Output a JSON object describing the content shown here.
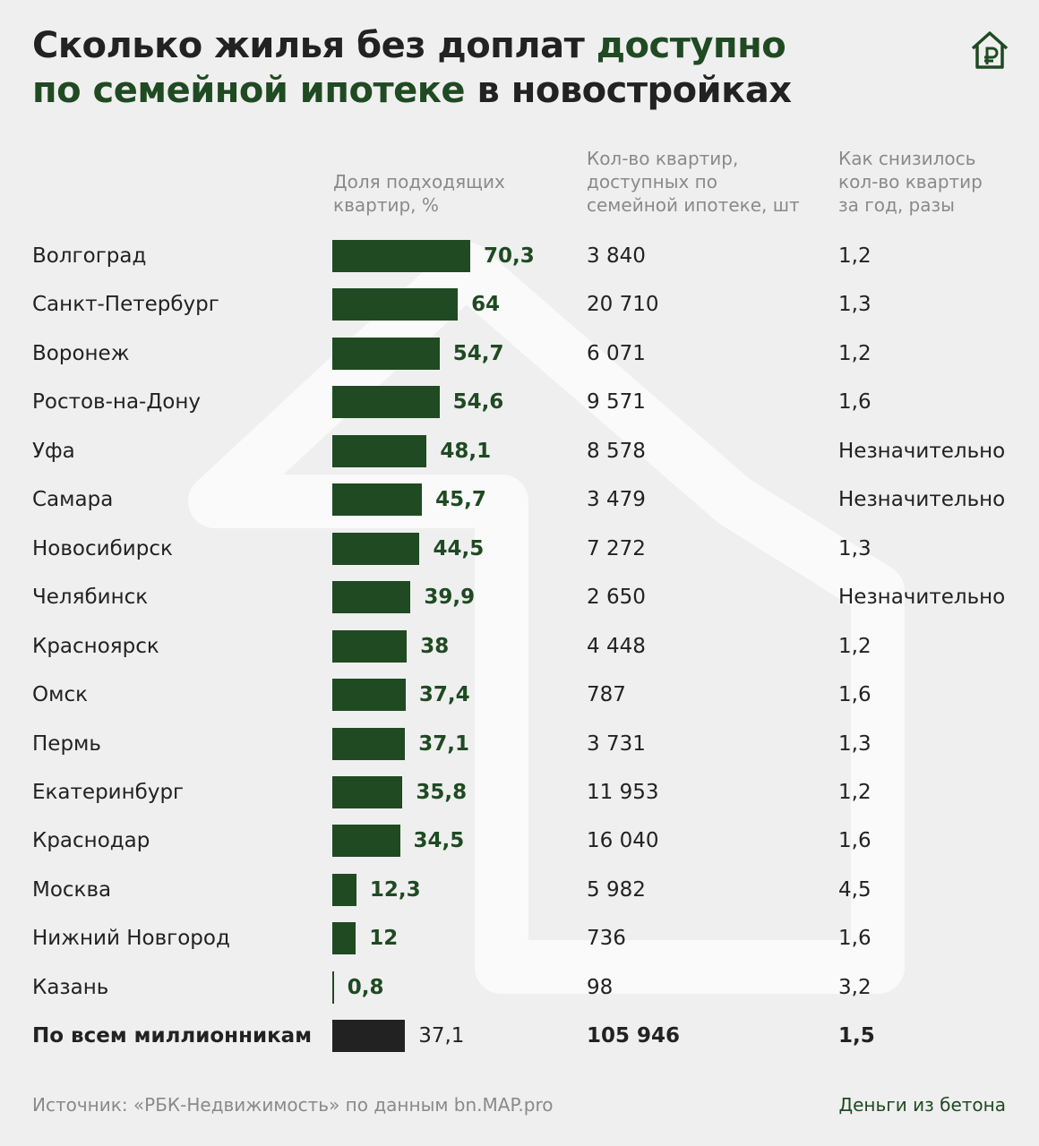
{
  "chart_data": {
    "type": "bar",
    "orientation": "horizontal",
    "title": [
      "Сколько жилья без доплат",
      "доступно",
      "по семейной ипотеке",
      "в новостройках"
    ],
    "column_headers": [
      "Доля подходящих квартир, %",
      "Кол-во квартир, доступных по семейной ипотеке, шт",
      "Как снизилось кол-во квартир за год, разы"
    ],
    "categories": [
      "Волгоград",
      "Санкт-Петербург",
      "Воронеж",
      "Ростов-на-Дону",
      "Уфа",
      "Самара",
      "Новосибирск",
      "Челябинск",
      "Красноярск",
      "Омск",
      "Пермь",
      "Екатеринбург",
      "Краснодар",
      "Москва",
      "Нижний Новгород",
      "Казань"
    ],
    "values": [
      70.3,
      64,
      54.7,
      54.6,
      48.1,
      45.7,
      44.5,
      39.9,
      38,
      37.4,
      37.1,
      35.8,
      34.5,
      12.3,
      12,
      0.8
    ],
    "value_labels": [
      "70,3",
      "64",
      "54,7",
      "54,6",
      "48,1",
      "45,7",
      "44,5",
      "39,9",
      "38",
      "37,4",
      "37,1",
      "35,8",
      "34,5",
      "12,3",
      "12",
      "0,8"
    ],
    "color": "#1f4a22",
    "counts": [
      "3 840",
      "20 710",
      "6 071",
      "9 571",
      "8 578",
      "3 479",
      "7 272",
      "2 650",
      "4 448",
      "787",
      "3 731",
      "11 953",
      "16 040",
      "5 982",
      "736",
      "98"
    ],
    "declines": [
      "1,2",
      "1,3",
      "1,2",
      "1,6",
      "Незначительно",
      "Незначительно",
      "1,3",
      "Незначительно",
      "1,2",
      "1,6",
      "1,3",
      "1,2",
      "1,6",
      "4,5",
      "1,6",
      "3,2"
    ],
    "total": {
      "label": "По всем миллионникам",
      "value": 37.1,
      "value_label": "37,1",
      "count": "105 946",
      "decline": "1,5",
      "color": "#222222"
    },
    "source": "Источник: «РБК-Недвижимость» по данным bn.MAP.pro",
    "brand": "Деньги из бетона"
  }
}
